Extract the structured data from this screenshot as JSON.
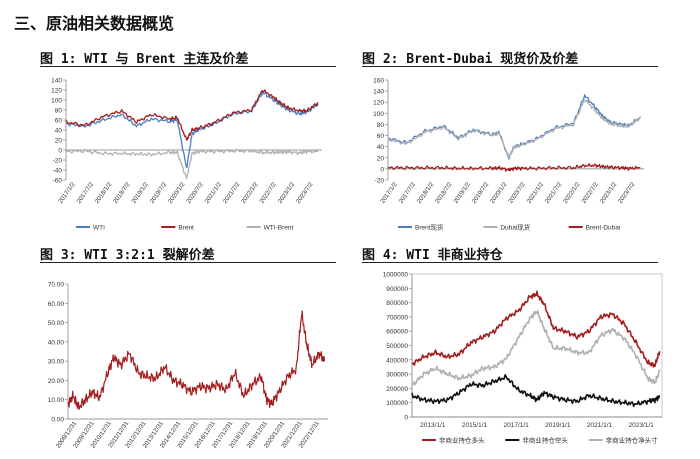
{
  "section_title": "三、原油相关数据概览",
  "figures": [
    {
      "caption": "图 1: WTI 与 Brent 主连及价差"
    },
    {
      "caption": "图 2: Brent-Dubai 现货价及价差"
    },
    {
      "caption": "图 3: WTI 3:2:1 裂解价差"
    },
    {
      "caption": "图 4: WTI 非商业持仓"
    }
  ],
  "chart_data": [
    {
      "type": "line",
      "title": "WTI 与 Brent 主连及价差",
      "ylim": [
        -60,
        140
      ],
      "yticks": [
        "140",
        "120",
        "100",
        "80",
        "60",
        "40",
        "20",
        "0",
        "-20",
        "-40",
        "-60"
      ],
      "xticks": [
        "2017/1/2",
        "2017/7/2",
        "2018/1/2",
        "2018/7/2",
        "2019/1/2",
        "2019/7/2",
        "2020/1/2",
        "2020/7/2",
        "2021/1/2",
        "2021/7/2",
        "2022/1/2",
        "2022/7/2",
        "2023/1/2",
        "2023/7/2"
      ],
      "x": [
        2017.0,
        2017.5,
        2018.0,
        2018.5,
        2018.9,
        2019.3,
        2019.8,
        2020.0,
        2020.25,
        2020.4,
        2020.6,
        2021.0,
        2021.5,
        2022.0,
        2022.3,
        2022.6,
        2022.8,
        2023.0,
        2023.3,
        2023.5,
        2023.8
      ],
      "series": [
        {
          "name": "WTI",
          "color": "#4a7fc1",
          "values": [
            53,
            47,
            60,
            71,
            48,
            62,
            57,
            60,
            -37,
            33,
            41,
            52,
            72,
            78,
            115,
            100,
            89,
            80,
            72,
            76,
            92
          ]
        },
        {
          "name": "Brent",
          "color": "#a31e1e",
          "values": [
            56,
            49,
            67,
            78,
            56,
            71,
            62,
            65,
            20,
            40,
            44,
            55,
            74,
            80,
            120,
            105,
            93,
            84,
            78,
            79,
            95
          ]
        },
        {
          "name": "WTI-Brent",
          "color": "#b0b0b0",
          "values": [
            -3,
            -2,
            -7,
            -7,
            -8,
            -9,
            -5,
            -5,
            -57,
            -7,
            -3,
            -3,
            -2,
            -2,
            -5,
            -5,
            -4,
            -4,
            -6,
            -3,
            -3
          ]
        }
      ]
    },
    {
      "type": "line",
      "title": "Brent-Dubai 现货价及价差",
      "ylim": [
        -20,
        160
      ],
      "yticks": [
        "160",
        "140",
        "120",
        "100",
        "80",
        "60",
        "40",
        "20",
        "0",
        "-20"
      ],
      "xticks": [
        "2017/1/2",
        "2017/7/2",
        "2018/1/2",
        "2018/7/2",
        "2019/1/2",
        "2019/7/2",
        "2020/1/2",
        "2020/7/2",
        "2021/1/2",
        "2021/7/2",
        "2022/1/2",
        "2022/7/2",
        "2023/1/2",
        "2023/7/2"
      ],
      "x": [
        2017.0,
        2017.5,
        2018.0,
        2018.5,
        2018.9,
        2019.3,
        2019.8,
        2020.0,
        2020.25,
        2020.4,
        2020.6,
        2021.0,
        2021.5,
        2022.0,
        2022.3,
        2022.6,
        2022.8,
        2023.0,
        2023.3,
        2023.5,
        2023.8
      ],
      "series": [
        {
          "name": "Brent现货",
          "color": "#4a7fc1",
          "values": [
            55,
            47,
            68,
            77,
            56,
            70,
            62,
            66,
            19,
            40,
            44,
            54,
            74,
            82,
            132,
            110,
            94,
            84,
            80,
            78,
            94
          ]
        },
        {
          "name": "Dubai现货",
          "color": "#b0b0b0",
          "values": [
            53,
            45,
            66,
            75,
            54,
            69,
            61,
            64,
            21,
            39,
            43,
            53,
            72,
            80,
            125,
            104,
            90,
            81,
            77,
            77,
            92
          ]
        },
        {
          "name": "Brent-Dubai",
          "color": "#a31e1e",
          "values": [
            2,
            2,
            2,
            2,
            1,
            1,
            1,
            2,
            -2,
            1,
            1,
            1,
            2,
            2,
            6,
            6,
            4,
            3,
            2,
            1,
            2
          ]
        }
      ]
    },
    {
      "type": "line",
      "title": "WTI 3:2:1 裂解价差",
      "ylim": [
        0,
        70
      ],
      "yticks": [
        "70.00",
        "60.00",
        "50.00",
        "40.00",
        "30.00",
        "20.00",
        "10.00",
        "0.00"
      ],
      "xticks": [
        "2008/12/31",
        "2009/12/31",
        "2010/12/31",
        "2011/12/31",
        "2012/12/31",
        "2013/12/31",
        "2014/12/31",
        "2015/12/31",
        "2016/12/31",
        "2017/12/31",
        "2018/12/31",
        "2019/12/31",
        "2020/12/31",
        "2021/12/31",
        "2022/12/31"
      ],
      "x": [
        2009.0,
        2009.3,
        2009.6,
        2010.0,
        2010.4,
        2010.8,
        2011.3,
        2011.6,
        2012.0,
        2012.5,
        2013.0,
        2013.5,
        2014.0,
        2014.5,
        2015.0,
        2015.5,
        2016.0,
        2016.5,
        2017.0,
        2017.5,
        2018.0,
        2018.5,
        2019.0,
        2019.5,
        2020.0,
        2020.3,
        2020.6,
        2021.0,
        2021.5,
        2022.0,
        2022.3,
        2022.6,
        2022.9,
        2023.3,
        2023.6
      ],
      "series": [
        {
          "name": "WTI 3:2:1 裂解价差",
          "color": "#a31e1e",
          "values": [
            8,
            12,
            6,
            10,
            14,
            11,
            25,
            32,
            28,
            34,
            24,
            22,
            21,
            27,
            20,
            18,
            14,
            17,
            16,
            18,
            15,
            24,
            12,
            18,
            22,
            10,
            8,
            14,
            22,
            26,
            55,
            38,
            28,
            34,
            30
          ]
        }
      ]
    },
    {
      "type": "line",
      "title": "WTI 非商业持仓",
      "ylim": [
        0,
        1000000
      ],
      "yticks": [
        "1000000",
        "900000",
        "800000",
        "700000",
        "600000",
        "500000",
        "400000",
        "300000",
        "200000",
        "100000",
        "0"
      ],
      "xticks": [
        "2013/1/1",
        "2015/1/1",
        "2017/1/1",
        "2019/1/1",
        "2021/1/1",
        "2023/1/1"
      ],
      "x": [
        2013.0,
        2013.5,
        2014.0,
        2014.5,
        2015.0,
        2015.5,
        2016.0,
        2016.5,
        2017.0,
        2017.5,
        2018.0,
        2018.3,
        2018.6,
        2019.0,
        2019.5,
        2020.0,
        2020.5,
        2021.0,
        2021.5,
        2022.0,
        2022.5,
        2023.0,
        2023.3,
        2023.5
      ],
      "series": [
        {
          "name": "非商业持仓多头",
          "color": "#a31e1e",
          "values": [
            370000,
            420000,
            450000,
            420000,
            440000,
            520000,
            560000,
            600000,
            690000,
            740000,
            840000,
            860000,
            790000,
            620000,
            600000,
            560000,
            600000,
            700000,
            720000,
            650000,
            520000,
            380000,
            360000,
            460000
          ]
        },
        {
          "name": "非商业持仓空头",
          "color": "#111111",
          "values": [
            150000,
            120000,
            110000,
            120000,
            170000,
            230000,
            220000,
            250000,
            280000,
            190000,
            150000,
            120000,
            170000,
            140000,
            120000,
            110000,
            150000,
            130000,
            110000,
            100000,
            90000,
            110000,
            120000,
            140000
          ]
        },
        {
          "name": "非商业持仓净头寸",
          "color": "#b0b0b0",
          "values": [
            220000,
            300000,
            340000,
            300000,
            270000,
            290000,
            340000,
            350000,
            410000,
            550000,
            690000,
            740000,
            620000,
            480000,
            480000,
            450000,
            450000,
            570000,
            610000,
            550000,
            430000,
            270000,
            240000,
            320000
          ]
        }
      ]
    }
  ]
}
